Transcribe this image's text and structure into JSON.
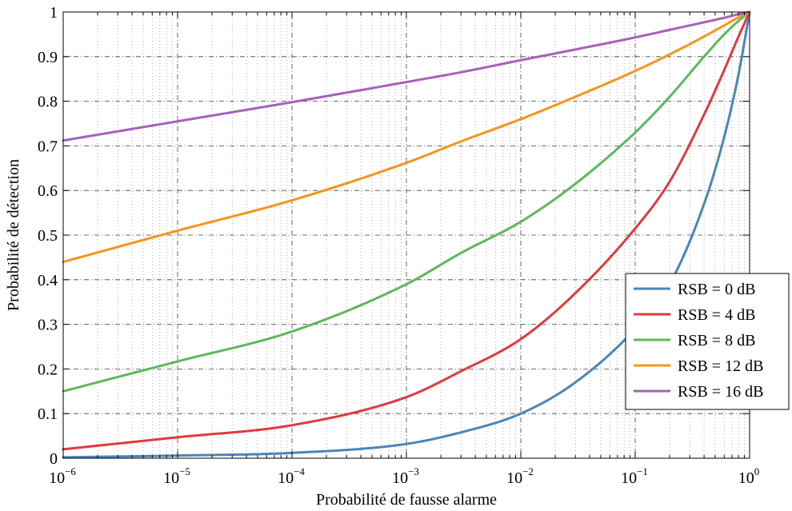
{
  "chart_data": {
    "type": "line",
    "title": "",
    "xlabel": "Probabilité de fausse alarme",
    "ylabel": "Probabilité de détection",
    "xscale": "log",
    "xlim": [
      1e-06,
      1
    ],
    "ylim": [
      0,
      1
    ],
    "grid": true,
    "legend_position": "bottom-right",
    "x_ticks": [
      {
        "value": 1e-06,
        "base": "10",
        "exp": "−6"
      },
      {
        "value": 1e-05,
        "base": "10",
        "exp": "−5"
      },
      {
        "value": 0.0001,
        "base": "10",
        "exp": "−4"
      },
      {
        "value": 0.001,
        "base": "10",
        "exp": "−3"
      },
      {
        "value": 0.01,
        "base": "10",
        "exp": "−2"
      },
      {
        "value": 0.1,
        "base": "10",
        "exp": "−1"
      },
      {
        "value": 1,
        "base": "10",
        "exp": "0"
      }
    ],
    "y_ticks": [
      {
        "value": 0,
        "label": "0"
      },
      {
        "value": 0.1,
        "label": "0.1"
      },
      {
        "value": 0.2,
        "label": "0.2"
      },
      {
        "value": 0.3,
        "label": "0.3"
      },
      {
        "value": 0.4,
        "label": "0.4"
      },
      {
        "value": 0.5,
        "label": "0.5"
      },
      {
        "value": 0.6,
        "label": "0.6"
      },
      {
        "value": 0.7,
        "label": "0.7"
      },
      {
        "value": 0.8,
        "label": "0.8"
      },
      {
        "value": 0.9,
        "label": "0.9"
      },
      {
        "value": 1,
        "label": "1"
      }
    ],
    "x": [
      1e-06,
      1e-05,
      0.0001,
      0.001,
      0.003,
      0.01,
      0.03,
      0.1,
      0.2,
      0.4,
      0.6,
      0.8,
      1
    ],
    "series": [
      {
        "name": "RSB = 0 dB",
        "color": "#4a86b6",
        "values": [
          0.002,
          0.006,
          0.012,
          0.032,
          0.058,
          0.1,
          0.17,
          0.29,
          0.39,
          0.57,
          0.72,
          0.86,
          1.0
        ]
      },
      {
        "name": "RSB = 4 dB",
        "color": "#e03a3e",
        "values": [
          0.02,
          0.047,
          0.074,
          0.137,
          0.195,
          0.267,
          0.37,
          0.515,
          0.62,
          0.77,
          0.87,
          0.945,
          1.0
        ]
      },
      {
        "name": "RSB = 8 dB",
        "color": "#5cb85c",
        "values": [
          0.15,
          0.217,
          0.284,
          0.39,
          0.46,
          0.53,
          0.615,
          0.73,
          0.81,
          0.9,
          0.95,
          0.98,
          1.0
        ]
      },
      {
        "name": "RSB = 12 dB",
        "color": "#f7941d",
        "values": [
          0.44,
          0.51,
          0.578,
          0.662,
          0.71,
          0.76,
          0.81,
          0.868,
          0.905,
          0.945,
          0.97,
          0.988,
          1.0
        ]
      },
      {
        "name": "RSB = 16 dB",
        "color": "#a661b8",
        "values": [
          0.712,
          0.755,
          0.798,
          0.843,
          0.865,
          0.892,
          0.916,
          0.943,
          0.96,
          0.977,
          0.987,
          0.995,
          1.0
        ]
      }
    ]
  }
}
